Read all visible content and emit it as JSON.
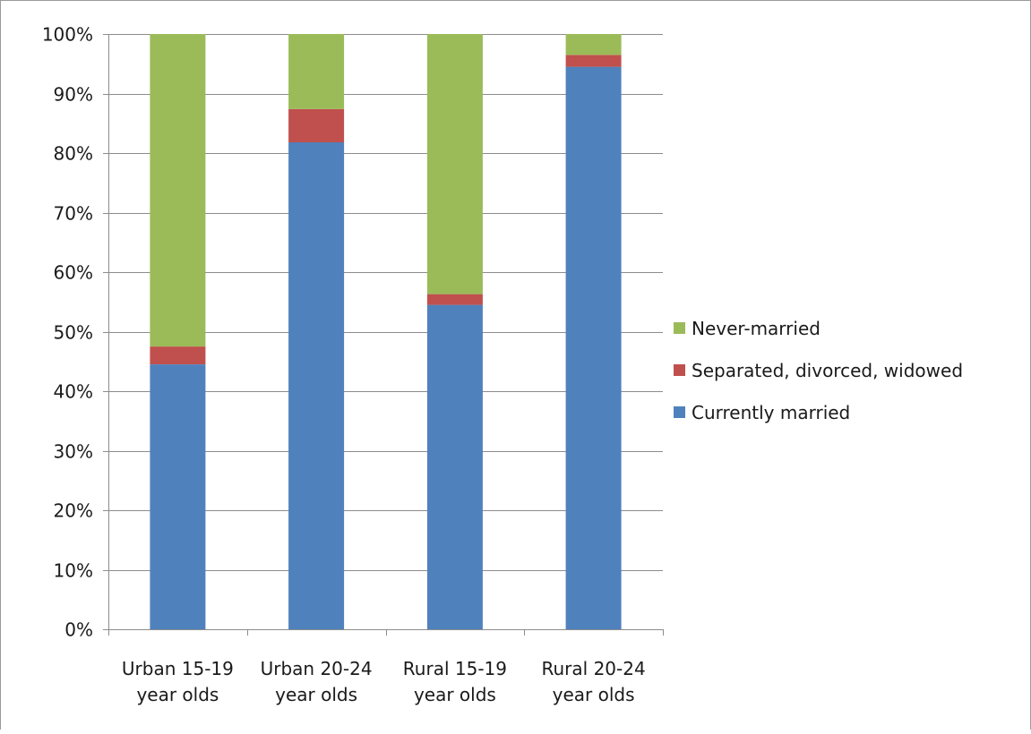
{
  "chart_data": {
    "type": "bar",
    "stacked": true,
    "percent_stacked": true,
    "categories": [
      [
        "Urban 15-19",
        "year olds"
      ],
      [
        "Urban 20-24",
        "year olds"
      ],
      [
        "Rural 15-19",
        "year olds"
      ],
      [
        "Rural 20-24",
        "year olds"
      ]
    ],
    "series": [
      {
        "name": "Currently married",
        "color": "#4f81bd",
        "values": [
          44.5,
          81.8,
          54.5,
          94.5
        ]
      },
      {
        "name": "Separated, divorced, widowed",
        "color": "#c0504d",
        "values": [
          3.0,
          5.6,
          1.8,
          2.0
        ]
      },
      {
        "name": "Never-married",
        "color": "#9bbb59",
        "values": [
          52.5,
          12.6,
          43.7,
          3.5
        ]
      }
    ],
    "legend_order": [
      "Never-married",
      "Separated, divorced, widowed",
      "Currently married"
    ],
    "yticks": [
      "0%",
      "10%",
      "20%",
      "30%",
      "40%",
      "50%",
      "60%",
      "70%",
      "80%",
      "90%",
      "100%"
    ],
    "ylim": [
      0,
      100
    ],
    "grid": true,
    "legend_position": "right",
    "title": "",
    "xlabel": "",
    "ylabel": ""
  }
}
